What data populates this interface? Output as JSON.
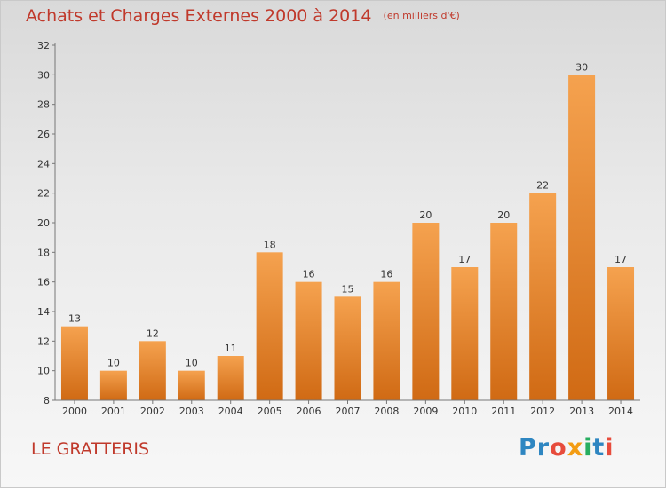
{
  "header": {
    "title": "Achats et Charges Externes 2000 à 2014",
    "subtitle": "(en milliers d'€)"
  },
  "footer": {
    "commune": "LE GRATTERIS",
    "logo_letters": [
      {
        "char": "P",
        "color": "#2e86c1"
      },
      {
        "char": "r",
        "color": "#2e86c1"
      },
      {
        "char": "o",
        "color": "#e74c3c"
      },
      {
        "char": "x",
        "color": "#f39c12"
      },
      {
        "char": "i",
        "color": "#27ae60"
      },
      {
        "char": "t",
        "color": "#2e86c1"
      },
      {
        "char": "i",
        "color": "#e74c3c"
      }
    ]
  },
  "colors": {
    "bar_top": "#f5a24f",
    "bar_bottom": "#d06a14",
    "title": "#c0392b",
    "axis": "#777777"
  },
  "chart_data": {
    "type": "bar",
    "title": "Achats et Charges Externes 2000 à 2014",
    "subtitle": "(en milliers d'€)",
    "categories": [
      "2000",
      "2001",
      "2002",
      "2003",
      "2004",
      "2005",
      "2006",
      "2007",
      "2008",
      "2009",
      "2010",
      "2011",
      "2012",
      "2013",
      "2014"
    ],
    "values": [
      13,
      10,
      12,
      10,
      11,
      18,
      16,
      15,
      16,
      20,
      17,
      20,
      22,
      30,
      17
    ],
    "ylim": [
      8,
      32
    ],
    "yticks": [
      8,
      10,
      12,
      14,
      16,
      18,
      20,
      22,
      24,
      26,
      28,
      30,
      32
    ],
    "grid": false,
    "legend": "none"
  }
}
